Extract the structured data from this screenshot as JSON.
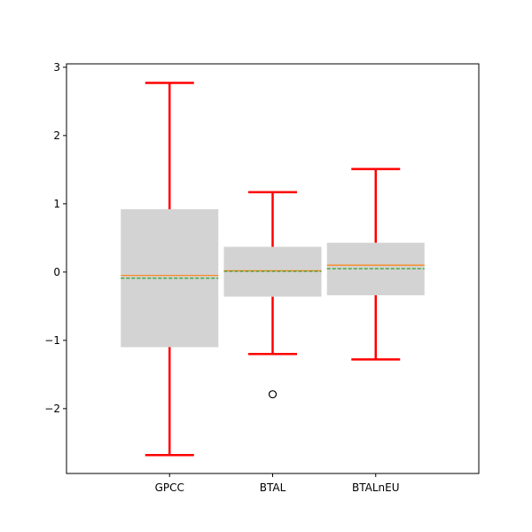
{
  "chart_data": {
    "type": "box",
    "categories": [
      "GPCC",
      "BTAL",
      "BTALnEU"
    ],
    "ylim": [
      -2.95,
      3.05
    ],
    "yticks": [
      3,
      2,
      1,
      0,
      -1,
      -2
    ],
    "ytick_labels": [
      "3",
      "2",
      "1",
      "0",
      "−1",
      "−2"
    ],
    "grid": false,
    "boxes": [
      {
        "name": "GPCC",
        "whisker_low": -2.68,
        "q1": -1.1,
        "median": -0.05,
        "mean": -0.09,
        "q3": 0.92,
        "whisker_high": 2.77,
        "outliers": []
      },
      {
        "name": "BTAL",
        "whisker_low": -1.2,
        "q1": -0.36,
        "median": 0.02,
        "mean": 0.01,
        "q3": 0.37,
        "whisker_high": 1.17,
        "outliers": [
          -1.79
        ]
      },
      {
        "name": "BTALnEU",
        "whisker_low": -1.28,
        "q1": -0.34,
        "median": 0.1,
        "mean": 0.05,
        "q3": 0.43,
        "whisker_high": 1.51,
        "outliers": []
      }
    ],
    "colors": {
      "box_fill": "#d3d3d3",
      "whisker": "#ff0000",
      "median": "#ff7f0e",
      "mean": "#2ca02c",
      "outlier_edge": "#000000",
      "axes": "#000000"
    }
  }
}
